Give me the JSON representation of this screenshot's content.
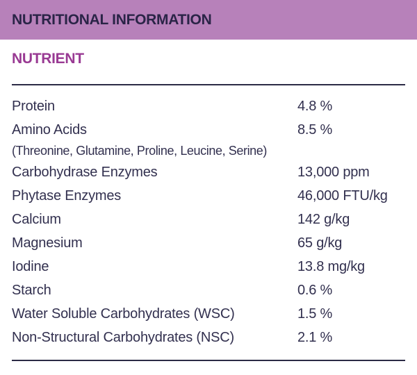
{
  "header": {
    "title": "NUTRITIONAL INFORMATION"
  },
  "table": {
    "column_header": "NUTRIENT",
    "rows": [
      {
        "label": "Protein",
        "value": "4.8 %"
      },
      {
        "label": "Amino Acids",
        "sublabel": "(Threonine, Glutamine, Proline, Leucine, Serine)",
        "value": "8.5 %"
      },
      {
        "label": "Carbohydrase Enzymes",
        "value": "13,000 ppm"
      },
      {
        "label": "Phytase Enzymes",
        "value": "46,000 FTU/kg"
      },
      {
        "label": "Calcium",
        "value": "142 g/kg"
      },
      {
        "label": "Magnesium",
        "value": "65 g/kg"
      },
      {
        "label": "Iodine",
        "value": "13.8 mg/kg"
      },
      {
        "label": "Starch",
        "value": "0.6 %"
      },
      {
        "label": "Water Soluble Carbohydrates (WSC)",
        "value": "1.5 %"
      },
      {
        "label": "Non-Structural Carbohydrates (NSC)",
        "value": "2.1 %"
      }
    ]
  },
  "colors": {
    "header_bar": "#b781ba",
    "header_text": "#2a2447",
    "nutrient_heading": "#993a93",
    "body_text": "#32304f",
    "rule": "#2b2a45",
    "background": "#ffffff"
  }
}
